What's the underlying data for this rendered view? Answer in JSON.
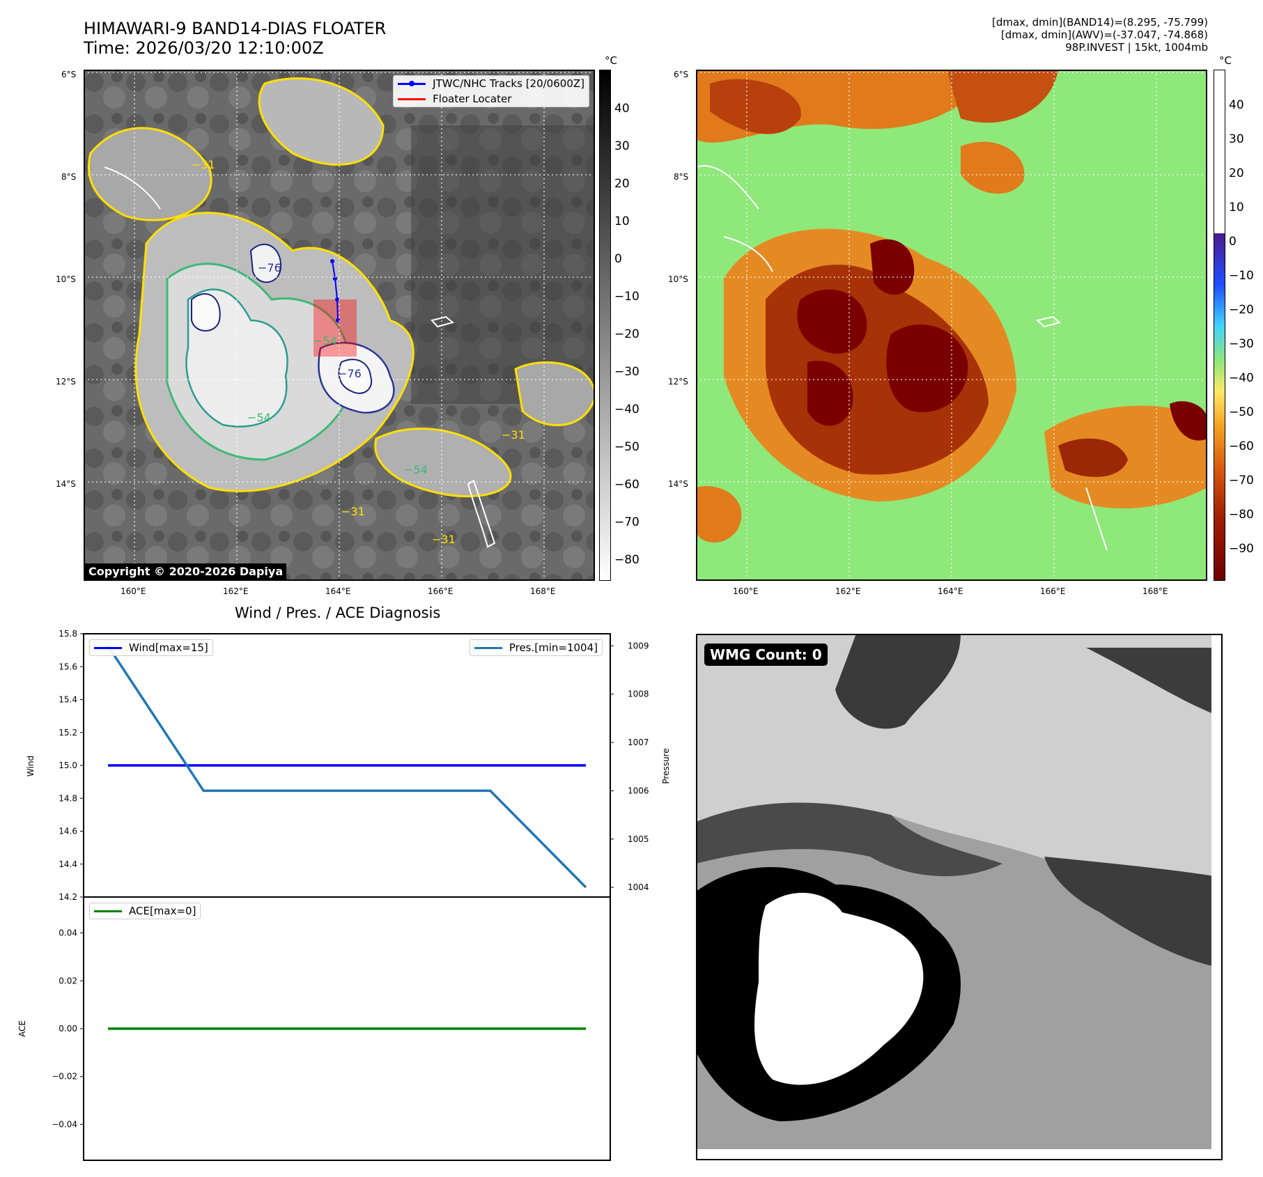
{
  "header": {
    "title_line1": "HIMAWARI-9 BAND14-DIAS FLOATER",
    "title_line2": "Time: 2026/03/20 12:10:00Z",
    "info_line1": "[dmax, dmin](BAND14)=(8.295, -75.799)",
    "info_line2": "[dmax, dmin](AWV)=(-37.047, -74.868)",
    "info_line3": "98P.INVEST | 15kt, 1004mb"
  },
  "map_axes": {
    "lat_ticks": [
      "6°S",
      "8°S",
      "10°S",
      "12°S",
      "14°S"
    ],
    "lon_ticks": [
      "160°E",
      "162°E",
      "164°E",
      "166°E",
      "168°E"
    ]
  },
  "ir_panel": {
    "legend": {
      "track_label": "JTWC/NHC Tracks [20/0600Z]",
      "locator_label": "Floater Locater"
    },
    "contour_labels": [
      "−31",
      "−31",
      "−54",
      "−54",
      "−76",
      "−76",
      "−31",
      "−54",
      "−31"
    ],
    "copyright": "Copyright © 2020-2026 Dapiya",
    "colorbar": {
      "unit": "°C",
      "ticks": [
        "40",
        "30",
        "20",
        "10",
        "0",
        "−10",
        "−20",
        "−30",
        "−40",
        "−50",
        "−60",
        "−70",
        "−80"
      ]
    }
  },
  "awv_panel": {
    "colorbar": {
      "unit": "°C",
      "ticks": [
        "40",
        "30",
        "20",
        "10",
        "0",
        "−10",
        "−20",
        "−30",
        "−40",
        "−50",
        "−60",
        "−70",
        "−80",
        "−90"
      ]
    }
  },
  "wmg_panel": {
    "count_label": "WMG Count: 0"
  },
  "diagnosis": {
    "title": "Wind / Pres. / ACE Diagnosis"
  },
  "colors": {
    "wind": "#0000ff",
    "pressure": "#1f77b4",
    "ace": "#008000",
    "track": "#0000ff",
    "locator": "#ff0000"
  },
  "chart_data": [
    {
      "type": "line",
      "panel": "wind-pressure",
      "x": [
        0,
        1,
        2,
        3,
        4,
        5
      ],
      "series": [
        {
          "name": "Wind[max=15]",
          "axis": "left",
          "values": [
            15,
            15,
            15,
            15,
            15,
            15
          ]
        },
        {
          "name": "Pres.[min=1004]",
          "axis": "right",
          "values": [
            1009,
            1006,
            1006,
            1006,
            1006,
            1004
          ]
        }
      ],
      "ylabel": "Wind",
      "y2label": "Pressure",
      "ylim": [
        14.2,
        15.8
      ],
      "y2lim": [
        1003.8,
        1009.25
      ],
      "yticks": [
        "15.8",
        "15.6",
        "15.4",
        "15.2",
        "15.0",
        "14.8",
        "14.6",
        "14.4",
        "14.2"
      ],
      "y2ticks": [
        "1009",
        "1008",
        "1007",
        "1006",
        "1005",
        "1004"
      ]
    },
    {
      "type": "line",
      "panel": "ace",
      "x": [
        0,
        1,
        2,
        3,
        4,
        5
      ],
      "series": [
        {
          "name": "ACE[max=0]",
          "values": [
            0,
            0,
            0,
            0,
            0,
            0
          ]
        }
      ],
      "ylabel": "ACE",
      "ylim": [
        -0.055,
        0.055
      ],
      "yticks": [
        "0.04",
        "0.02",
        "0.00",
        "−0.02",
        "−0.04"
      ]
    }
  ]
}
